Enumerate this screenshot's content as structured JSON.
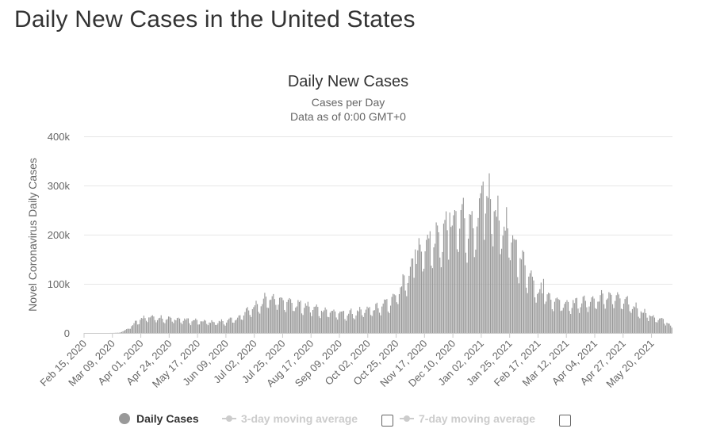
{
  "page": {
    "title": "Daily New Cases in the United States"
  },
  "legend": {
    "daily_cases": "Daily Cases",
    "three_day": "3-day moving average",
    "seven_day": "7-day moving average"
  },
  "colors": {
    "bar": "#999999",
    "grid": "#e6e6e6",
    "text": "#333333",
    "axis_text": "#666666"
  },
  "chart_data": {
    "type": "bar",
    "title": "Daily New Cases",
    "subtitle_lines": [
      "Cases per Day",
      "Data as of 0:00 GMT+0"
    ],
    "xlabel": "",
    "ylabel": "Novel Coronavirus Daily Cases",
    "ylim": [
      0,
      400000
    ],
    "y_ticks": [
      0,
      100000,
      200000,
      300000,
      400000
    ],
    "y_tick_labels": [
      "0",
      "100k",
      "200k",
      "300k",
      "400k"
    ],
    "start_date": "2020-02-15",
    "num_days": 477,
    "x_tick_labels": [
      "Feb 15, 2020",
      "Mar 09, 2020",
      "Apr 01, 2020",
      "Apr 24, 2020",
      "May 17, 2020",
      "Jun 09, 2020",
      "Jul 02, 2020",
      "Jul 25, 2020",
      "Aug 17, 2020",
      "Sep 09, 2020",
      "Oct 02, 2020",
      "Oct 25, 2020",
      "Nov 17, 2020",
      "Dec 10, 2020",
      "Jan 02, 2021",
      "Jan 25, 2021",
      "Feb 17, 2021",
      "Mar 12, 2021",
      "Apr 04, 2021",
      "Apr 27, 2021",
      "May 20, 2021"
    ],
    "x_tick_days": [
      0,
      23,
      46,
      69,
      92,
      115,
      138,
      161,
      184,
      207,
      230,
      253,
      276,
      299,
      322,
      345,
      368,
      391,
      414,
      437,
      460
    ],
    "series": [
      {
        "name": "Daily Cases",
        "trend_points": [
          [
            0,
            0
          ],
          [
            20,
            0
          ],
          [
            28,
            500
          ],
          [
            35,
            8000
          ],
          [
            40,
            18000
          ],
          [
            46,
            28000
          ],
          [
            52,
            32000
          ],
          [
            60,
            30000
          ],
          [
            69,
            28000
          ],
          [
            80,
            26000
          ],
          [
            92,
            23000
          ],
          [
            105,
            21000
          ],
          [
            115,
            23000
          ],
          [
            125,
            30000
          ],
          [
            133,
            45000
          ],
          [
            140,
            55000
          ],
          [
            148,
            66000
          ],
          [
            155,
            68000
          ],
          [
            162,
            65000
          ],
          [
            170,
            57000
          ],
          [
            180,
            52000
          ],
          [
            190,
            46000
          ],
          [
            200,
            42000
          ],
          [
            207,
            38000
          ],
          [
            215,
            38000
          ],
          [
            225,
            42000
          ],
          [
            232,
            46000
          ],
          [
            240,
            52000
          ],
          [
            248,
            62000
          ],
          [
            255,
            80000
          ],
          [
            262,
            115000
          ],
          [
            268,
            150000
          ],
          [
            276,
            175000
          ],
          [
            285,
            180000
          ],
          [
            292,
            195000
          ],
          [
            299,
            215000
          ],
          [
            306,
            225000
          ],
          [
            312,
            215000
          ],
          [
            318,
            215000
          ],
          [
            324,
            240000
          ],
          [
            327,
            265000
          ],
          [
            331,
            245000
          ],
          [
            336,
            225000
          ],
          [
            342,
            200000
          ],
          [
            348,
            175000
          ],
          [
            355,
            140000
          ],
          [
            362,
            110000
          ],
          [
            368,
            85000
          ],
          [
            375,
            72000
          ],
          [
            382,
            63000
          ],
          [
            391,
            58000
          ],
          [
            400,
            60000
          ],
          [
            410,
            62000
          ],
          [
            418,
            68000
          ],
          [
            424,
            72000
          ],
          [
            430,
            70000
          ],
          [
            437,
            62000
          ],
          [
            445,
            52000
          ],
          [
            452,
            42000
          ],
          [
            460,
            32000
          ],
          [
            468,
            25000
          ],
          [
            473,
            20000
          ],
          [
            476,
            10000
          ]
        ],
        "spikes": [
          [
            322,
            300000
          ],
          [
            323,
            308000
          ],
          [
            305,
            250000
          ],
          [
            300,
            250000
          ],
          [
            296,
            245000
          ],
          [
            285,
            225000
          ],
          [
            278,
            200000
          ],
          [
            268,
            170000
          ],
          [
            292,
            230000
          ],
          [
            314,
            248000
          ],
          [
            333,
            250000
          ],
          [
            372,
            110000
          ],
          [
            425,
            83000
          ]
        ]
      }
    ]
  }
}
